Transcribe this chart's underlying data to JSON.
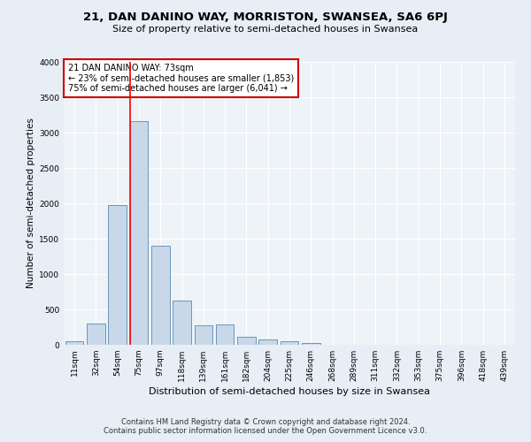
{
  "title": "21, DAN DANINO WAY, MORRISTON, SWANSEA, SA6 6PJ",
  "subtitle": "Size of property relative to semi-detached houses in Swansea",
  "xlabel": "Distribution of semi-detached houses by size in Swansea",
  "ylabel": "Number of semi-detached properties",
  "footer1": "Contains HM Land Registry data © Crown copyright and database right 2024.",
  "footer2": "Contains public sector information licensed under the Open Government Licence v3.0.",
  "categories": [
    "11sqm",
    "32sqm",
    "54sqm",
    "75sqm",
    "97sqm",
    "118sqm",
    "139sqm",
    "161sqm",
    "182sqm",
    "204sqm",
    "225sqm",
    "246sqm",
    "268sqm",
    "289sqm",
    "311sqm",
    "332sqm",
    "353sqm",
    "375sqm",
    "396sqm",
    "418sqm",
    "439sqm"
  ],
  "values": [
    50,
    300,
    1970,
    3160,
    1400,
    630,
    280,
    290,
    110,
    70,
    50,
    30,
    5,
    5,
    5,
    5,
    2,
    2,
    2,
    2,
    2
  ],
  "bar_color": "#c8d8e8",
  "bar_edge_color": "#5a8ab0",
  "property_label": "21 DAN DANINO WAY: 73sqm",
  "smaller_pct": "23%",
  "smaller_count": "1,853",
  "larger_pct": "75%",
  "larger_count": "6,041",
  "vline_bin_index": 3,
  "annotation_box_color": "#cc0000",
  "ylim": [
    0,
    4000
  ],
  "yticks": [
    0,
    500,
    1000,
    1500,
    2000,
    2500,
    3000,
    3500,
    4000
  ],
  "bg_color": "#e8eef5",
  "plot_bg_color": "#eef3f8",
  "title_fontsize": 9.5,
  "subtitle_fontsize": 8,
  "ylabel_fontsize": 7.5,
  "xlabel_fontsize": 8,
  "tick_fontsize": 6.5,
  "annot_fontsize": 7,
  "footer_fontsize": 6
}
